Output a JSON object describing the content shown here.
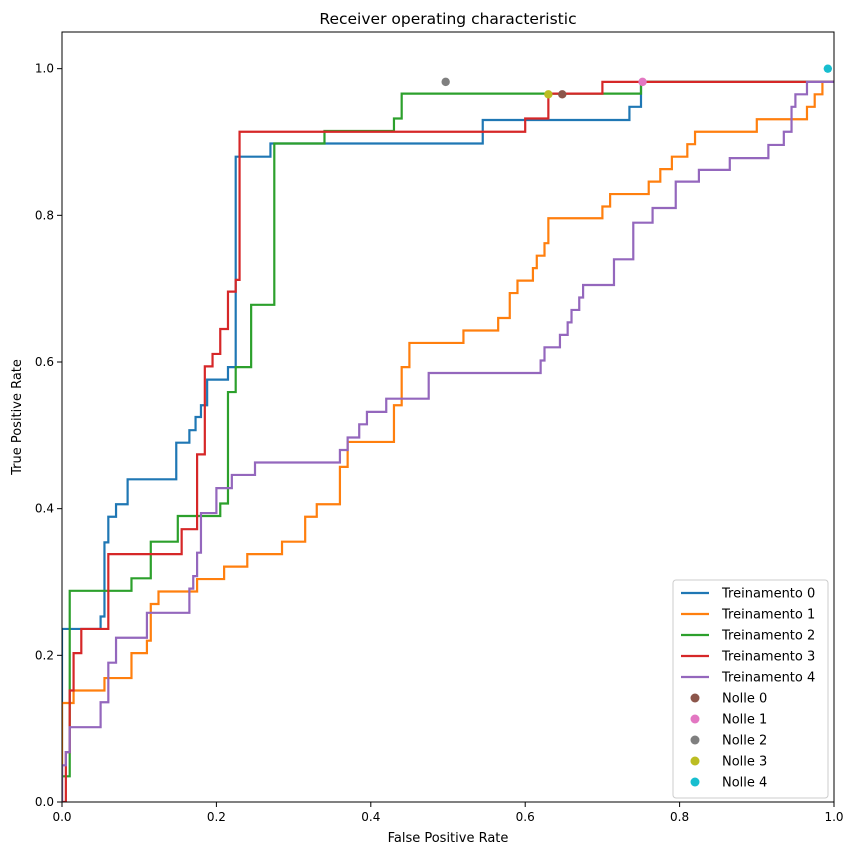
{
  "chart_data": {
    "type": "line",
    "title": "Receiver operating characteristic",
    "xlabel": "False Positive Rate",
    "ylabel": "True Positive Rate",
    "xlim": [
      0.0,
      1.0
    ],
    "ylim": [
      0.0,
      1.05
    ],
    "xticks": [
      "0.0",
      "0.2",
      "0.4",
      "0.6",
      "0.8",
      "1.0"
    ],
    "yticks": [
      "0.0",
      "0.2",
      "0.4",
      "0.6",
      "0.8",
      "1.0"
    ],
    "grid": false,
    "legend_position": "lower-right",
    "series": [
      {
        "name": "Treinamento 0",
        "color": "#1f77b4",
        "x": [
          0,
          0,
          0.04,
          0.05,
          0.055,
          0.06,
          0.07,
          0.085,
          0.14,
          0.148,
          0.165,
          0.173,
          0.18,
          0.188,
          0.198,
          0.215,
          0.225,
          0.23,
          0.27,
          0.545,
          0.655,
          0.735,
          0.75,
          1.0
        ],
        "y": [
          0,
          0.236,
          0.236,
          0.253,
          0.354,
          0.389,
          0.406,
          0.44,
          0.44,
          0.49,
          0.507,
          0.525,
          0.541,
          0.576,
          0.576,
          0.593,
          0.88,
          0.88,
          0.898,
          0.93,
          0.93,
          0.948,
          0.982,
          0.982
        ]
      },
      {
        "name": "Treinamento 1",
        "color": "#ff7f0e",
        "x": [
          0,
          0,
          0.015,
          0.055,
          0.09,
          0.11,
          0.115,
          0.125,
          0.14,
          0.175,
          0.21,
          0.24,
          0.285,
          0.315,
          0.33,
          0.35,
          0.36,
          0.37,
          0.43,
          0.44,
          0.45,
          0.52,
          0.565,
          0.58,
          0.59,
          0.61,
          0.615,
          0.625,
          0.63,
          0.7,
          0.71,
          0.76,
          0.775,
          0.79,
          0.8,
          0.81,
          0.82,
          0.895,
          0.9,
          0.965,
          0.975,
          0.985
        ],
        "y": [
          0,
          0.135,
          0.152,
          0.169,
          0.203,
          0.22,
          0.27,
          0.287,
          0.287,
          0.304,
          0.321,
          0.338,
          0.355,
          0.389,
          0.406,
          0.406,
          0.457,
          0.491,
          0.541,
          0.593,
          0.626,
          0.643,
          0.66,
          0.694,
          0.711,
          0.728,
          0.745,
          0.762,
          0.796,
          0.812,
          0.829,
          0.846,
          0.863,
          0.88,
          0.88,
          0.897,
          0.914,
          0.914,
          0.931,
          0.948,
          0.965,
          0.982
        ]
      },
      {
        "name": "Treinamento 2",
        "color": "#2ca02c",
        "x": [
          0,
          0.005,
          0.01,
          0.09,
          0.115,
          0.15,
          0.2,
          0.205,
          0.215,
          0.225,
          0.245,
          0.275,
          0.34,
          0.43,
          0.44,
          0.475,
          0.75,
          1.0
        ],
        "y": [
          0.035,
          0.035,
          0.288,
          0.305,
          0.355,
          0.39,
          0.39,
          0.407,
          0.559,
          0.593,
          0.678,
          0.898,
          0.915,
          0.932,
          0.966,
          0.966,
          0.982,
          0.982
        ]
      },
      {
        "name": "Treinamento 3",
        "color": "#d62728",
        "x": [
          0,
          0.005,
          0.01,
          0.015,
          0.025,
          0.06,
          0.07,
          0.1,
          0.155,
          0.175,
          0.185,
          0.195,
          0.205,
          0.215,
          0.225,
          0.23,
          0.235,
          0.6,
          0.63,
          0.7,
          1.0
        ],
        "y": [
          0,
          0.068,
          0.152,
          0.203,
          0.236,
          0.338,
          0.338,
          0.338,
          0.372,
          0.474,
          0.594,
          0.611,
          0.645,
          0.696,
          0.712,
          0.914,
          0.914,
          0.932,
          0.966,
          0.982,
          0.982
        ]
      },
      {
        "name": "Treinamento 4",
        "color": "#9467bd",
        "x": [
          0,
          0,
          0.005,
          0.01,
          0.015,
          0.05,
          0.06,
          0.07,
          0.11,
          0.165,
          0.17,
          0.175,
          0.18,
          0.2,
          0.22,
          0.25,
          0.36,
          0.37,
          0.385,
          0.395,
          0.42,
          0.445,
          0.475,
          0.615,
          0.62,
          0.625,
          0.645,
          0.655,
          0.66,
          0.67,
          0.675,
          0.685,
          0.715,
          0.735,
          0.74,
          0.765,
          0.785,
          0.795,
          0.825,
          0.865,
          0.915,
          0.935,
          0.945,
          0.95,
          0.965,
          1.0
        ],
        "y": [
          0,
          0.05,
          0.068,
          0.102,
          0.102,
          0.136,
          0.19,
          0.224,
          0.258,
          0.291,
          0.308,
          0.34,
          0.394,
          0.428,
          0.446,
          0.463,
          0.48,
          0.497,
          0.515,
          0.532,
          0.55,
          0.55,
          0.585,
          0.585,
          0.602,
          0.62,
          0.637,
          0.654,
          0.671,
          0.688,
          0.705,
          0.705,
          0.74,
          0.74,
          0.79,
          0.81,
          0.81,
          0.846,
          0.862,
          0.878,
          0.896,
          0.914,
          0.948,
          0.965,
          0.982,
          0.982
        ]
      }
    ],
    "markers": [
      {
        "name": "Nolle 0",
        "color": "#8c564b",
        "x": 0.648,
        "y": 0.965
      },
      {
        "name": "Nolle 1",
        "color": "#e377c2",
        "x": 0.752,
        "y": 0.982
      },
      {
        "name": "Nolle 2",
        "color": "#7f7f7f",
        "x": 0.497,
        "y": 0.982
      },
      {
        "name": "Nolle 3",
        "color": "#bcbd22",
        "x": 0.63,
        "y": 0.965
      },
      {
        "name": "Nolle 4",
        "color": "#17becf",
        "x": 0.992,
        "y": 1.0
      }
    ]
  }
}
